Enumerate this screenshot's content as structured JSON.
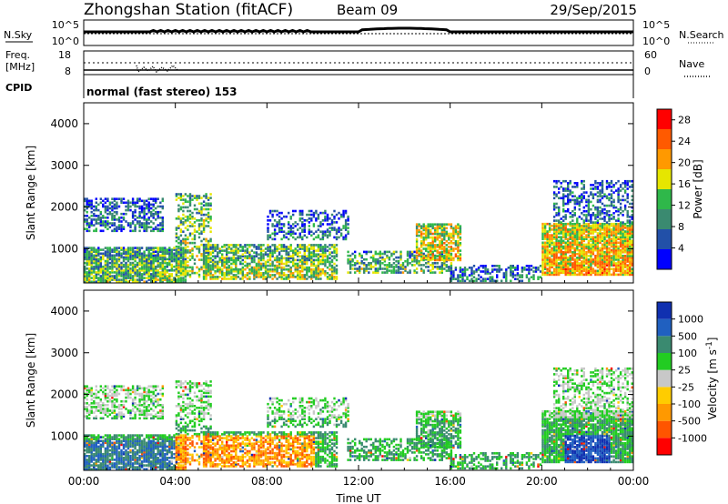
{
  "header": {
    "station": "Zhongshan Station (fitACF)",
    "beam": "Beam 09",
    "date": "29/Sep/2015"
  },
  "noise_panel": {
    "left_label": "N.Sky",
    "right_label": "N.Search",
    "left_ticks": [
      "10^5",
      "10^0"
    ],
    "right_ticks": [
      "10^5",
      "10^0"
    ]
  },
  "freq_panel": {
    "left_label_1": "Freq.",
    "left_label_2": "[MHz]",
    "right_label": "Nave",
    "left_ticks": [
      "18",
      "8"
    ],
    "right_ticks": [
      "60",
      "0"
    ],
    "cpid_label": "CPID",
    "cpid_text": "normal (fast stereo) 153"
  },
  "colors": {
    "power_scale": [
      "#0000ff",
      "#2250a8",
      "#3a8a70",
      "#2fb84a",
      "#e6e600",
      "#ff9900",
      "#ff5a00",
      "#ff0000"
    ],
    "velocity_scale": [
      "#ff0000",
      "#ff5500",
      "#ff9900",
      "#ffcc00",
      "#c8c8c8",
      "#22cc22",
      "#3a8a70",
      "#2060c0",
      "#1030b0"
    ]
  },
  "chart_data": [
    {
      "type": "heatmap",
      "name": "power",
      "ylabel": "Slant Range [km]",
      "y_ticks": [
        "1000",
        "2000",
        "3000",
        "4000"
      ],
      "ylim": [
        180,
        4500
      ],
      "x_ticks": [
        "00:00",
        "04:00",
        "08:00",
        "12:00",
        "16:00",
        "20:00",
        "00:00"
      ],
      "xlim_hours": [
        0,
        24
      ],
      "colorbar_label": "Power [dB]",
      "colorbar_ticks": [
        "4",
        "8",
        "12",
        "16",
        "20",
        "24",
        "28"
      ],
      "colorbar_range": [
        0,
        30
      ]
    },
    {
      "type": "heatmap",
      "name": "velocity",
      "ylabel": "Slant Range [km]",
      "y_ticks": [
        "1000",
        "2000",
        "3000",
        "4000"
      ],
      "ylim": [
        180,
        4500
      ],
      "x_ticks": [
        "00:00",
        "04:00",
        "08:00",
        "12:00",
        "16:00",
        "20:00",
        "00:00"
      ],
      "xlabel": "Time UT",
      "xlim_hours": [
        0,
        24
      ],
      "colorbar_label": "Velocity [m s^-1]",
      "colorbar_ticks": [
        "1000",
        "500",
        "100",
        "25",
        "-25",
        "-100",
        "-500",
        "-1000"
      ]
    }
  ]
}
